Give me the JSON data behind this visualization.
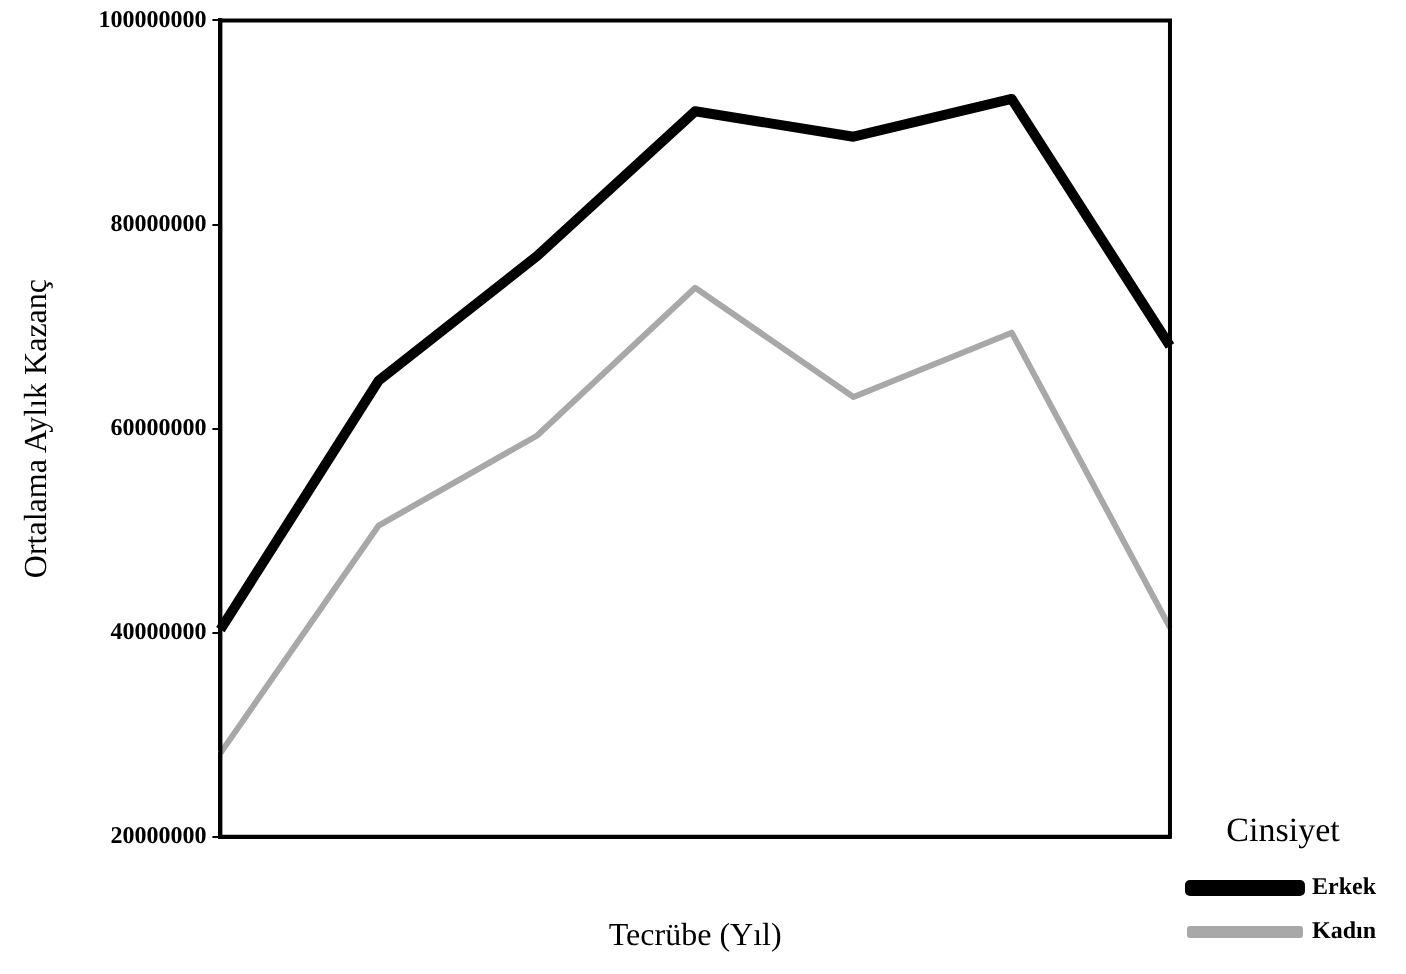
{
  "chart_data": {
    "type": "line",
    "xlabel": "Tecrübe (Yıl)",
    "ylabel": "Ortalama Aylık Kazanç",
    "legend_title": "Cinsiyet",
    "legend": "bottom right",
    "grid": false,
    "marker": "none",
    "categories": [
      null,
      null,
      null,
      null,
      null,
      null,
      null
    ],
    "ylim": [
      20000000,
      100000000
    ],
    "yticks": [
      20000000,
      40000000,
      60000000,
      80000000,
      100000000
    ],
    "series": [
      {
        "name": "Erkek",
        "color": "#000000",
        "values": [
          40300000,
          64700000,
          76900000,
          91100000,
          88600000,
          92300000,
          68100000
        ]
      },
      {
        "name": "Kadın",
        "color": "#a8a8a8",
        "values": [
          28200000,
          50500000,
          59300000,
          73800000,
          63100000,
          69400000,
          40500000
        ]
      }
    ]
  }
}
